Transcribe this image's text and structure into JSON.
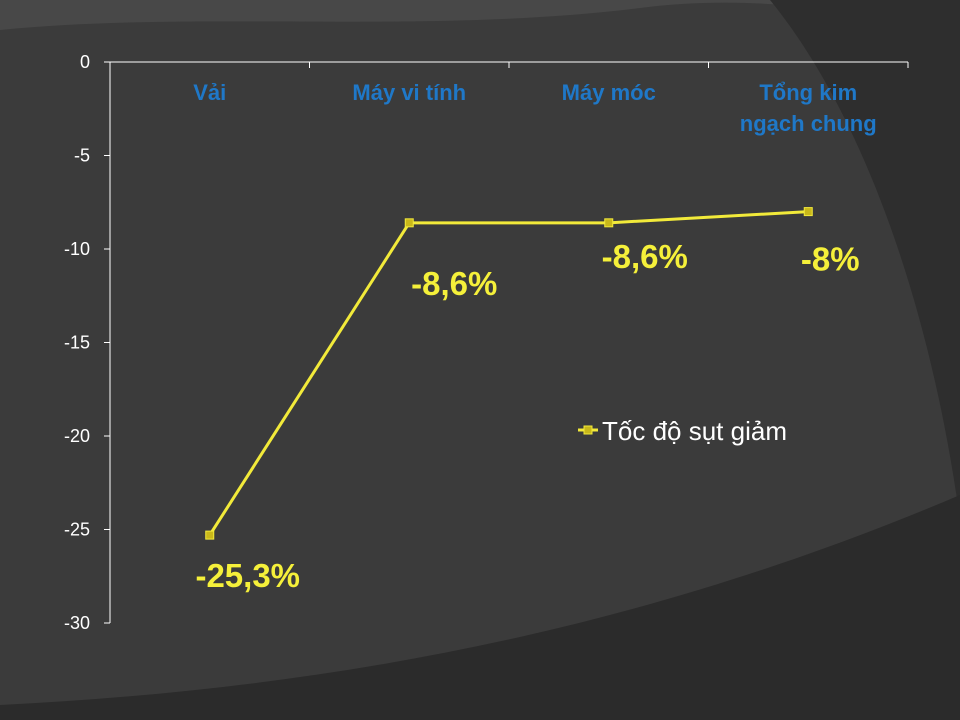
{
  "chart_data": {
    "type": "line",
    "categories": [
      "Vải",
      "Máy vi tính",
      "Máy móc",
      "Tổng kim ngạch chung"
    ],
    "category_lines": [
      [
        "Vải"
      ],
      [
        "Máy vi tính"
      ],
      [
        "Máy móc"
      ],
      [
        "Tổng kim",
        "ngạch chung"
      ]
    ],
    "series": [
      {
        "name": "Tốc độ sụt giảm",
        "values": [
          -25.3,
          -8.6,
          -8.6,
          -8.0
        ],
        "color": "#f2ea3a"
      }
    ],
    "data_labels": [
      "-25,3%",
      "-8,6%",
      "-8,6%",
      "-8%"
    ],
    "ylim": [
      -30,
      0
    ],
    "yticks": [
      0,
      -5,
      -10,
      -15,
      -20,
      -25,
      -30
    ],
    "x_axis_position": "top",
    "grid": false,
    "legend_position": "right",
    "title": "",
    "xlabel": "",
    "ylabel": ""
  },
  "colors": {
    "background": "#3b3b3b",
    "axis": "#ffffff",
    "tick_text": "#ffffff",
    "category_text": "#1f78c8",
    "data_label": "#f5f03a",
    "line": "#f2ea3a",
    "marker_fill": "#c9b81a"
  }
}
